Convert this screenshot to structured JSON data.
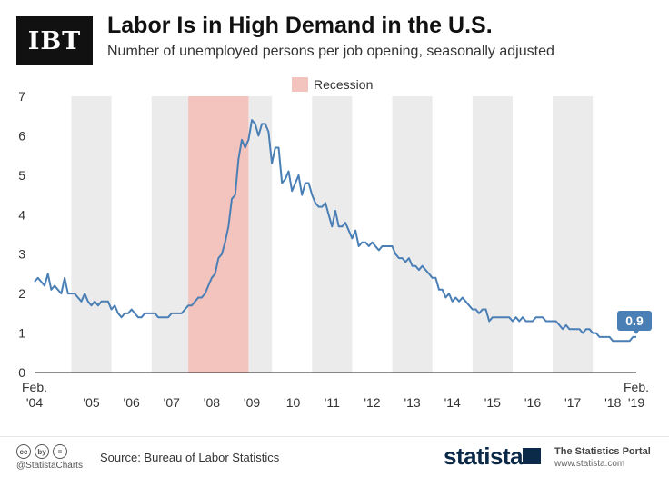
{
  "header": {
    "logo_text": "IBT",
    "title": "Labor Is in High Demand in the U.S.",
    "subtitle": "Number of unemployed persons per job opening, seasonally adjusted"
  },
  "footer": {
    "cc_icons": [
      "cc",
      "by",
      "="
    ],
    "handle": "@StatistaCharts",
    "source": "Source: Bureau of Labor Statistics",
    "brand": "statista",
    "portal_name": "The Statistics Portal",
    "portal_url": "www.statista.com"
  },
  "colors": {
    "line": "#4a7fb5",
    "recession": "#f3c3bd",
    "year_band": "#ebebeb",
    "badge": "#4a7fb5"
  },
  "chart_data": {
    "type": "line",
    "title": "Labor Is in High Demand in the U.S.",
    "subtitle": "Number of unemployed persons per job opening, seasonally adjusted",
    "ylim": [
      0,
      7
    ],
    "yticks": [
      0,
      1,
      2,
      3,
      4,
      5,
      6,
      7
    ],
    "xlim": [
      "2004-02",
      "2019-02"
    ],
    "x_tick_labels": [
      {
        "label": "Feb. '04",
        "x": "2004-02"
      },
      {
        "label": "'05",
        "x": "2005-07"
      },
      {
        "label": "'06",
        "x": "2006-07"
      },
      {
        "label": "'07",
        "x": "2007-07"
      },
      {
        "label": "'08",
        "x": "2008-07"
      },
      {
        "label": "'09",
        "x": "2009-07"
      },
      {
        "label": "'10",
        "x": "2010-07"
      },
      {
        "label": "'11",
        "x": "2011-07"
      },
      {
        "label": "'12",
        "x": "2012-07"
      },
      {
        "label": "'13",
        "x": "2013-07"
      },
      {
        "label": "'14",
        "x": "2014-07"
      },
      {
        "label": "'15",
        "x": "2015-07"
      },
      {
        "label": "'16",
        "x": "2016-07"
      },
      {
        "label": "'17",
        "x": "2017-07"
      },
      {
        "label": "'18",
        "x": "2018-07"
      },
      {
        "label": "Feb. '19",
        "x": "2019-02"
      }
    ],
    "shaded_years": [
      2005,
      2007,
      2009,
      2011,
      2013,
      2015,
      2017
    ],
    "recession": {
      "label": "Recession",
      "start": "2007-12",
      "end": "2009-06"
    },
    "legend_position": "top-center",
    "grid": false,
    "end_label": "0.9",
    "series": [
      {
        "points": [
          [
            "2004-02",
            2.3
          ],
          [
            "2004-03",
            2.4
          ],
          [
            "2004-04",
            2.3
          ],
          [
            "2004-05",
            2.2
          ],
          [
            "2004-06",
            2.5
          ],
          [
            "2004-07",
            2.1
          ],
          [
            "2004-08",
            2.2
          ],
          [
            "2004-09",
            2.1
          ],
          [
            "2004-10",
            2.0
          ],
          [
            "2004-11",
            2.4
          ],
          [
            "2004-12",
            2.0
          ],
          [
            "2005-01",
            2.0
          ],
          [
            "2005-02",
            2.0
          ],
          [
            "2005-03",
            1.9
          ],
          [
            "2005-04",
            1.8
          ],
          [
            "2005-05",
            2.0
          ],
          [
            "2005-06",
            1.8
          ],
          [
            "2005-07",
            1.7
          ],
          [
            "2005-08",
            1.8
          ],
          [
            "2005-09",
            1.7
          ],
          [
            "2005-10",
            1.8
          ],
          [
            "2005-11",
            1.8
          ],
          [
            "2005-12",
            1.8
          ],
          [
            "2006-01",
            1.6
          ],
          [
            "2006-02",
            1.7
          ],
          [
            "2006-03",
            1.5
          ],
          [
            "2006-04",
            1.4
          ],
          [
            "2006-05",
            1.5
          ],
          [
            "2006-06",
            1.5
          ],
          [
            "2006-07",
            1.6
          ],
          [
            "2006-08",
            1.5
          ],
          [
            "2006-09",
            1.4
          ],
          [
            "2006-10",
            1.4
          ],
          [
            "2006-11",
            1.5
          ],
          [
            "2006-12",
            1.5
          ],
          [
            "2007-01",
            1.5
          ],
          [
            "2007-02",
            1.5
          ],
          [
            "2007-03",
            1.4
          ],
          [
            "2007-04",
            1.4
          ],
          [
            "2007-05",
            1.4
          ],
          [
            "2007-06",
            1.4
          ],
          [
            "2007-07",
            1.5
          ],
          [
            "2007-08",
            1.5
          ],
          [
            "2007-09",
            1.5
          ],
          [
            "2007-10",
            1.5
          ],
          [
            "2007-11",
            1.6
          ],
          [
            "2007-12",
            1.7
          ],
          [
            "2008-01",
            1.7
          ],
          [
            "2008-02",
            1.8
          ],
          [
            "2008-03",
            1.9
          ],
          [
            "2008-04",
            1.9
          ],
          [
            "2008-05",
            2.0
          ],
          [
            "2008-06",
            2.2
          ],
          [
            "2008-07",
            2.4
          ],
          [
            "2008-08",
            2.5
          ],
          [
            "2008-09",
            2.9
          ],
          [
            "2008-10",
            3.0
          ],
          [
            "2008-11",
            3.3
          ],
          [
            "2008-12",
            3.7
          ],
          [
            "2009-01",
            4.4
          ],
          [
            "2009-02",
            4.5
          ],
          [
            "2009-03",
            5.4
          ],
          [
            "2009-04",
            5.9
          ],
          [
            "2009-05",
            5.7
          ],
          [
            "2009-06",
            5.9
          ],
          [
            "2009-07",
            6.4
          ],
          [
            "2009-08",
            6.3
          ],
          [
            "2009-09",
            6.0
          ],
          [
            "2009-10",
            6.3
          ],
          [
            "2009-11",
            6.3
          ],
          [
            "2009-12",
            6.1
          ],
          [
            "2010-01",
            5.3
          ],
          [
            "2010-02",
            5.7
          ],
          [
            "2010-03",
            5.7
          ],
          [
            "2010-04",
            4.8
          ],
          [
            "2010-05",
            4.9
          ],
          [
            "2010-06",
            5.1
          ],
          [
            "2010-07",
            4.6
          ],
          [
            "2010-08",
            4.8
          ],
          [
            "2010-09",
            5.0
          ],
          [
            "2010-10",
            4.5
          ],
          [
            "2010-11",
            4.8
          ],
          [
            "2010-12",
            4.8
          ],
          [
            "2011-01",
            4.5
          ],
          [
            "2011-02",
            4.3
          ],
          [
            "2011-03",
            4.2
          ],
          [
            "2011-04",
            4.2
          ],
          [
            "2011-05",
            4.3
          ],
          [
            "2011-06",
            4.0
          ],
          [
            "2011-07",
            3.7
          ],
          [
            "2011-08",
            4.1
          ],
          [
            "2011-09",
            3.7
          ],
          [
            "2011-10",
            3.7
          ],
          [
            "2011-11",
            3.8
          ],
          [
            "2011-12",
            3.6
          ],
          [
            "2012-01",
            3.4
          ],
          [
            "2012-02",
            3.6
          ],
          [
            "2012-03",
            3.2
          ],
          [
            "2012-04",
            3.3
          ],
          [
            "2012-05",
            3.3
          ],
          [
            "2012-06",
            3.2
          ],
          [
            "2012-07",
            3.3
          ],
          [
            "2012-08",
            3.2
          ],
          [
            "2012-09",
            3.1
          ],
          [
            "2012-10",
            3.2
          ],
          [
            "2012-11",
            3.2
          ],
          [
            "2012-12",
            3.2
          ],
          [
            "2013-01",
            3.2
          ],
          [
            "2013-02",
            3.0
          ],
          [
            "2013-03",
            2.9
          ],
          [
            "2013-04",
            2.9
          ],
          [
            "2013-05",
            2.8
          ],
          [
            "2013-06",
            2.9
          ],
          [
            "2013-07",
            2.7
          ],
          [
            "2013-08",
            2.7
          ],
          [
            "2013-09",
            2.6
          ],
          [
            "2013-10",
            2.7
          ],
          [
            "2013-11",
            2.6
          ],
          [
            "2013-12",
            2.5
          ],
          [
            "2014-01",
            2.4
          ],
          [
            "2014-02",
            2.4
          ],
          [
            "2014-03",
            2.1
          ],
          [
            "2014-04",
            2.1
          ],
          [
            "2014-05",
            1.9
          ],
          [
            "2014-06",
            2.0
          ],
          [
            "2014-07",
            1.8
          ],
          [
            "2014-08",
            1.9
          ],
          [
            "2014-09",
            1.8
          ],
          [
            "2014-10",
            1.9
          ],
          [
            "2014-11",
            1.8
          ],
          [
            "2014-12",
            1.7
          ],
          [
            "2015-01",
            1.6
          ],
          [
            "2015-02",
            1.6
          ],
          [
            "2015-03",
            1.5
          ],
          [
            "2015-04",
            1.6
          ],
          [
            "2015-05",
            1.6
          ],
          [
            "2015-06",
            1.3
          ],
          [
            "2015-07",
            1.4
          ],
          [
            "2015-08",
            1.4
          ],
          [
            "2015-09",
            1.4
          ],
          [
            "2015-10",
            1.4
          ],
          [
            "2015-11",
            1.4
          ],
          [
            "2015-12",
            1.4
          ],
          [
            "2016-01",
            1.3
          ],
          [
            "2016-02",
            1.4
          ],
          [
            "2016-03",
            1.3
          ],
          [
            "2016-04",
            1.4
          ],
          [
            "2016-05",
            1.3
          ],
          [
            "2016-06",
            1.3
          ],
          [
            "2016-07",
            1.3
          ],
          [
            "2016-08",
            1.4
          ],
          [
            "2016-09",
            1.4
          ],
          [
            "2016-10",
            1.4
          ],
          [
            "2016-11",
            1.3
          ],
          [
            "2016-12",
            1.3
          ],
          [
            "2017-01",
            1.3
          ],
          [
            "2017-02",
            1.3
          ],
          [
            "2017-03",
            1.2
          ],
          [
            "2017-04",
            1.1
          ],
          [
            "2017-05",
            1.2
          ],
          [
            "2017-06",
            1.1
          ],
          [
            "2017-07",
            1.1
          ],
          [
            "2017-08",
            1.1
          ],
          [
            "2017-09",
            1.1
          ],
          [
            "2017-10",
            1.0
          ],
          [
            "2017-11",
            1.1
          ],
          [
            "2017-12",
            1.1
          ],
          [
            "2018-01",
            1.0
          ],
          [
            "2018-02",
            1.0
          ],
          [
            "2018-03",
            0.9
          ],
          [
            "2018-04",
            0.9
          ],
          [
            "2018-05",
            0.9
          ],
          [
            "2018-06",
            0.9
          ],
          [
            "2018-07",
            0.8
          ],
          [
            "2018-08",
            0.8
          ],
          [
            "2018-09",
            0.8
          ],
          [
            "2018-10",
            0.8
          ],
          [
            "2018-11",
            0.8
          ],
          [
            "2018-12",
            0.8
          ],
          [
            "2019-01",
            0.9
          ],
          [
            "2019-02",
            0.9
          ]
        ]
      }
    ]
  }
}
